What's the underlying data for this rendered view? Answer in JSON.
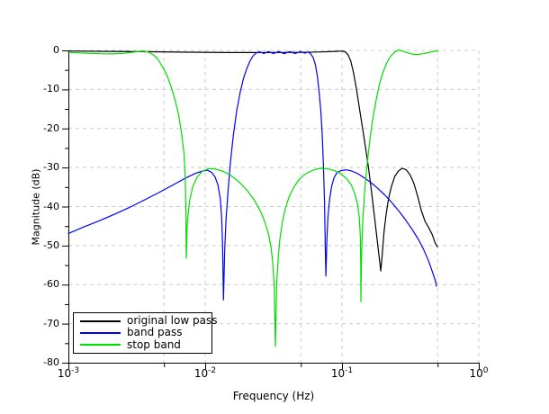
{
  "figure": {
    "background": "#ffffff",
    "grid_color": "#cccccc",
    "axis_color": "#000000"
  },
  "chart_data": {
    "type": "line",
    "title": "",
    "xlabel": "Frequency (Hz)",
    "ylabel": "Magnitude (dB)",
    "x_scale": "log",
    "xlim": [
      0.001,
      1
    ],
    "ylim": [
      -80,
      0
    ],
    "x_tick_base": "10",
    "x_tick_exponents": [
      -3,
      -2,
      -1,
      0
    ],
    "y_ticks": [
      0,
      -10,
      -20,
      -30,
      -40,
      -50,
      -60,
      -70,
      -80
    ],
    "y_minor_ticks": [
      -5,
      -15,
      -25,
      -35,
      -45,
      -55,
      -65,
      -75
    ],
    "x_minor_tick_freqs": [
      0.005,
      0.05,
      0.5
    ],
    "x_grid_freqs": [
      0.005,
      0.01,
      0.05,
      0.1,
      0.5,
      1.0
    ],
    "y_grid_values": [
      0,
      -10,
      -20,
      -30,
      -40,
      -50,
      -60,
      -70
    ],
    "grid_style": "dashed",
    "legend_position": "bottom-left",
    "series": [
      {
        "name": "original low pass",
        "color": "#000000",
        "points": [
          [
            0.001,
            -0.15
          ],
          [
            0.002,
            -0.25
          ],
          [
            0.004,
            -0.35
          ],
          [
            0.008,
            -0.45
          ],
          [
            0.015,
            -0.55
          ],
          [
            0.03,
            -0.55
          ],
          [
            0.05,
            -0.5
          ],
          [
            0.07,
            -0.4
          ],
          [
            0.09,
            -0.25
          ],
          [
            0.1,
            -0.15
          ],
          [
            0.106,
            -0.4
          ],
          [
            0.111,
            -1.2
          ],
          [
            0.116,
            -2.8
          ],
          [
            0.121,
            -5.5
          ],
          [
            0.127,
            -9.5
          ],
          [
            0.133,
            -14
          ],
          [
            0.14,
            -19
          ],
          [
            0.148,
            -24.5
          ],
          [
            0.156,
            -30
          ],
          [
            0.164,
            -36
          ],
          [
            0.172,
            -42
          ],
          [
            0.18,
            -48
          ],
          [
            0.187,
            -53
          ],
          [
            0.192,
            -56.5
          ],
          [
            0.197,
            -52
          ],
          [
            0.203,
            -46.5
          ],
          [
            0.21,
            -42
          ],
          [
            0.219,
            -38
          ],
          [
            0.23,
            -34.8
          ],
          [
            0.243,
            -32.3
          ],
          [
            0.258,
            -30.9
          ],
          [
            0.276,
            -30.2
          ],
          [
            0.295,
            -30.6
          ],
          [
            0.315,
            -31.9
          ],
          [
            0.335,
            -34
          ],
          [
            0.357,
            -37.3
          ],
          [
            0.38,
            -41
          ],
          [
            0.405,
            -43.8
          ],
          [
            0.432,
            -45.5
          ],
          [
            0.458,
            -47.3
          ],
          [
            0.478,
            -49.2
          ],
          [
            0.498,
            -50.3
          ]
        ]
      },
      {
        "name": "band pass",
        "color": "#0000ff",
        "points": [
          [
            0.001,
            -46.9
          ],
          [
            0.0013,
            -45.2
          ],
          [
            0.0017,
            -43.6
          ],
          [
            0.0022,
            -41.9
          ],
          [
            0.0028,
            -40.2
          ],
          [
            0.0036,
            -38.3
          ],
          [
            0.0046,
            -36.4
          ],
          [
            0.0058,
            -34.5
          ],
          [
            0.0072,
            -32.7
          ],
          [
            0.0085,
            -31.5
          ],
          [
            0.0096,
            -30.9
          ],
          [
            0.0104,
            -30.7
          ],
          [
            0.0111,
            -31.2
          ],
          [
            0.0118,
            -32.4
          ],
          [
            0.0124,
            -34.5
          ],
          [
            0.0129,
            -38
          ],
          [
            0.0132,
            -43
          ],
          [
            0.0134,
            -50
          ],
          [
            0.0136,
            -63.9
          ],
          [
            0.0139,
            -51
          ],
          [
            0.0142,
            -43.5
          ],
          [
            0.0147,
            -36
          ],
          [
            0.0153,
            -28.5
          ],
          [
            0.0161,
            -21.5
          ],
          [
            0.017,
            -15.5
          ],
          [
            0.018,
            -10.8
          ],
          [
            0.019,
            -7.3
          ],
          [
            0.0201,
            -4.7
          ],
          [
            0.0212,
            -2.8
          ],
          [
            0.0223,
            -1.5
          ],
          [
            0.0235,
            -0.7
          ],
          [
            0.025,
            -0.35
          ],
          [
            0.0268,
            -0.8
          ],
          [
            0.029,
            -0.3
          ],
          [
            0.0315,
            -0.8
          ],
          [
            0.0345,
            -0.3
          ],
          [
            0.0378,
            -0.85
          ],
          [
            0.0415,
            -0.3
          ],
          [
            0.0455,
            -0.8
          ],
          [
            0.0495,
            -0.3
          ],
          [
            0.0535,
            -0.7
          ],
          [
            0.0565,
            -0.4
          ],
          [
            0.059,
            -0.9
          ],
          [
            0.0615,
            -1.8
          ],
          [
            0.0638,
            -3.5
          ],
          [
            0.066,
            -6.5
          ],
          [
            0.068,
            -10.5
          ],
          [
            0.0698,
            -15
          ],
          [
            0.0715,
            -21
          ],
          [
            0.0731,
            -29
          ],
          [
            0.0745,
            -39
          ],
          [
            0.0755,
            -50
          ],
          [
            0.0762,
            -57.8
          ],
          [
            0.0775,
            -48.5
          ],
          [
            0.079,
            -42.5
          ],
          [
            0.0812,
            -38
          ],
          [
            0.084,
            -34.8
          ],
          [
            0.0875,
            -32.6
          ],
          [
            0.092,
            -31.3
          ],
          [
            0.098,
            -30.8
          ],
          [
            0.107,
            -30.6
          ],
          [
            0.118,
            -30.9
          ],
          [
            0.131,
            -31.6
          ],
          [
            0.146,
            -32.7
          ],
          [
            0.163,
            -33.9
          ],
          [
            0.182,
            -35.3
          ],
          [
            0.205,
            -37
          ],
          [
            0.23,
            -38.9
          ],
          [
            0.258,
            -41
          ],
          [
            0.29,
            -43.3
          ],
          [
            0.325,
            -45.8
          ],
          [
            0.36,
            -48.3
          ],
          [
            0.395,
            -51
          ],
          [
            0.43,
            -54
          ],
          [
            0.46,
            -56.9
          ],
          [
            0.48,
            -58.8
          ],
          [
            0.49,
            -60.4
          ]
        ]
      },
      {
        "name": "stop band",
        "color": "#00dd00",
        "points": [
          [
            0.001,
            -0.5
          ],
          [
            0.0013,
            -0.7
          ],
          [
            0.0017,
            -0.85
          ],
          [
            0.0021,
            -0.9
          ],
          [
            0.0025,
            -0.75
          ],
          [
            0.0029,
            -0.5
          ],
          [
            0.0033,
            -0.25
          ],
          [
            0.0036,
            -0.2
          ],
          [
            0.0039,
            -0.5
          ],
          [
            0.0042,
            -1.2
          ],
          [
            0.0045,
            -2.2
          ],
          [
            0.0048,
            -3.8
          ],
          [
            0.0052,
            -6
          ],
          [
            0.0056,
            -9
          ],
          [
            0.006,
            -12.5
          ],
          [
            0.0064,
            -16.5
          ],
          [
            0.0067,
            -21
          ],
          [
            0.007,
            -26.5
          ],
          [
            0.00715,
            -33
          ],
          [
            0.00722,
            -42
          ],
          [
            0.00728,
            -53.2
          ],
          [
            0.0074,
            -44
          ],
          [
            0.0077,
            -38.5
          ],
          [
            0.0081,
            -35
          ],
          [
            0.0087,
            -32.5
          ],
          [
            0.0095,
            -31
          ],
          [
            0.0106,
            -30.3
          ],
          [
            0.012,
            -30.4
          ],
          [
            0.0136,
            -31
          ],
          [
            0.0155,
            -32.1
          ],
          [
            0.0178,
            -33.8
          ],
          [
            0.0203,
            -35.9
          ],
          [
            0.0228,
            -38.3
          ],
          [
            0.0252,
            -41
          ],
          [
            0.0273,
            -43.9
          ],
          [
            0.029,
            -47
          ],
          [
            0.0303,
            -50.5
          ],
          [
            0.0313,
            -55
          ],
          [
            0.032,
            -61
          ],
          [
            0.0326,
            -75.8
          ],
          [
            0.0333,
            -60
          ],
          [
            0.0341,
            -53.5
          ],
          [
            0.0351,
            -48.5
          ],
          [
            0.0365,
            -44.3
          ],
          [
            0.0384,
            -40.7
          ],
          [
            0.041,
            -37.6
          ],
          [
            0.0444,
            -35.1
          ],
          [
            0.0488,
            -33
          ],
          [
            0.0542,
            -31.6
          ],
          [
            0.0608,
            -30.7
          ],
          [
            0.069,
            -30.2
          ],
          [
            0.078,
            -30.3
          ],
          [
            0.088,
            -30.8
          ],
          [
            0.098,
            -31.6
          ],
          [
            0.108,
            -32.8
          ],
          [
            0.117,
            -34.5
          ],
          [
            0.1245,
            -36.8
          ],
          [
            0.13,
            -39.5
          ],
          [
            0.134,
            -43
          ],
          [
            0.1362,
            -48
          ],
          [
            0.137,
            -55
          ],
          [
            0.1374,
            -64.4
          ],
          [
            0.1385,
            -55
          ],
          [
            0.1402,
            -48
          ],
          [
            0.1425,
            -42.5
          ],
          [
            0.1455,
            -37.5
          ],
          [
            0.1495,
            -32.5
          ],
          [
            0.1545,
            -27.5
          ],
          [
            0.1605,
            -22.5
          ],
          [
            0.168,
            -17.5
          ],
          [
            0.177,
            -13
          ],
          [
            0.187,
            -9
          ],
          [
            0.199,
            -5.7
          ],
          [
            0.212,
            -3.2
          ],
          [
            0.227,
            -1.5
          ],
          [
            0.243,
            -0.4
          ],
          [
            0.26,
            0.1
          ],
          [
            0.278,
            -0.2
          ],
          [
            0.3,
            -0.6
          ],
          [
            0.325,
            -0.95
          ],
          [
            0.355,
            -1.05
          ],
          [
            0.39,
            -0.85
          ],
          [
            0.43,
            -0.55
          ],
          [
            0.468,
            -0.25
          ],
          [
            0.5,
            -0.1
          ]
        ]
      }
    ]
  }
}
